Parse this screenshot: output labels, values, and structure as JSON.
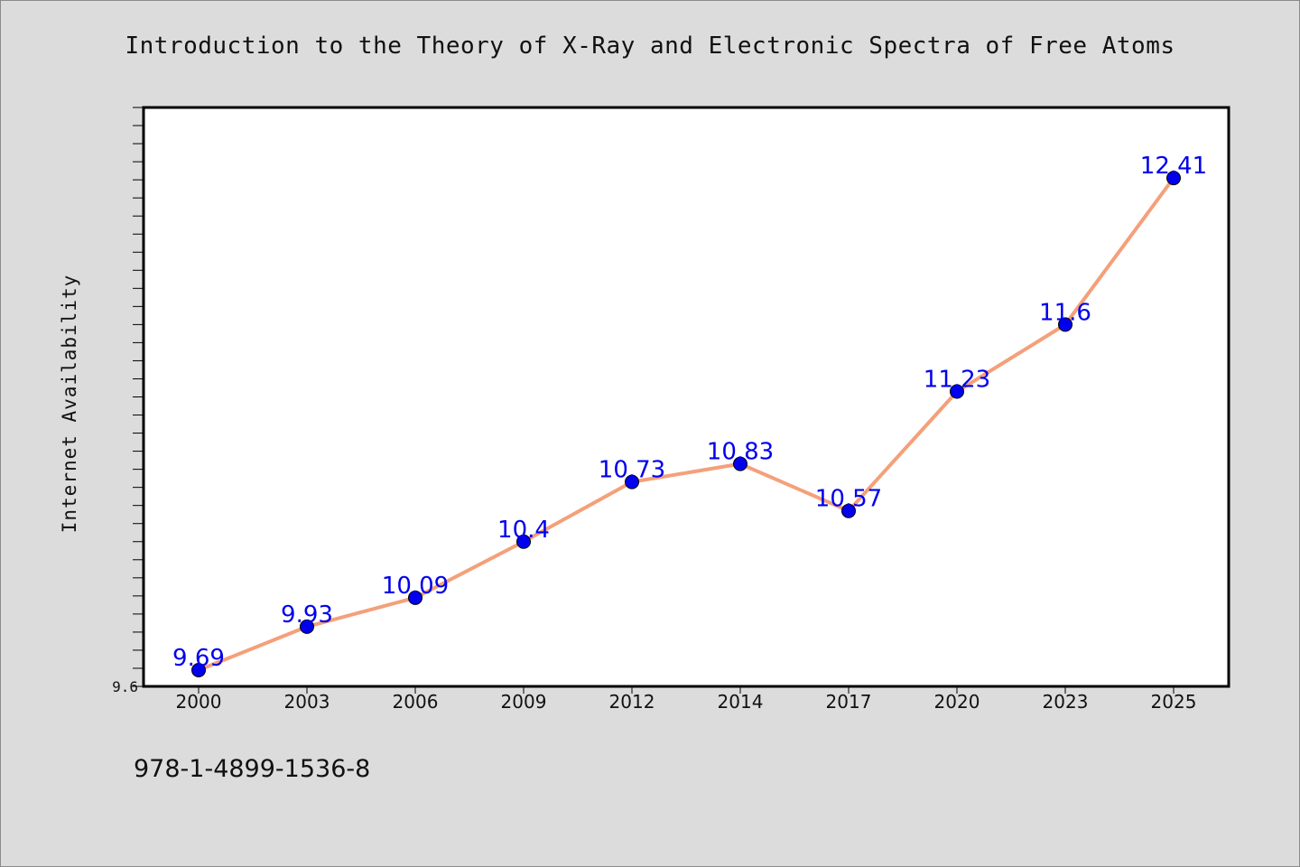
{
  "chart_data": {
    "type": "line",
    "title": "Introduction to the Theory of X-Ray and Electronic Spectra of Free Atoms",
    "xlabel": "",
    "ylabel": "Internet Availability",
    "categories": [
      "2000",
      "2003",
      "2006",
      "2009",
      "2012",
      "2014",
      "2017",
      "2020",
      "2023",
      "2025"
    ],
    "series": [
      {
        "values": [
          9.69,
          9.93,
          10.09,
          10.4,
          10.73,
          10.83,
          10.57,
          11.23,
          11.6,
          12.41
        ],
        "labels": [
          "9.69",
          "9.93",
          "10.09",
          "10.4",
          "10.73",
          "10.83",
          "10.57",
          "11.23",
          "11.6",
          "12.41"
        ],
        "line_color": "#f4a07a",
        "marker_color": "#0000ee"
      }
    ],
    "ylim": [
      9.6,
      12.8
    ],
    "ytick_labels": [
      "9.6"
    ],
    "grid": false,
    "legend": "none"
  },
  "footer": {
    "isbn": "978-1-4899-1536-8"
  },
  "colors": {
    "background": "#dcdcdc",
    "plot_background": "#ffffff",
    "axis": "#000000"
  }
}
